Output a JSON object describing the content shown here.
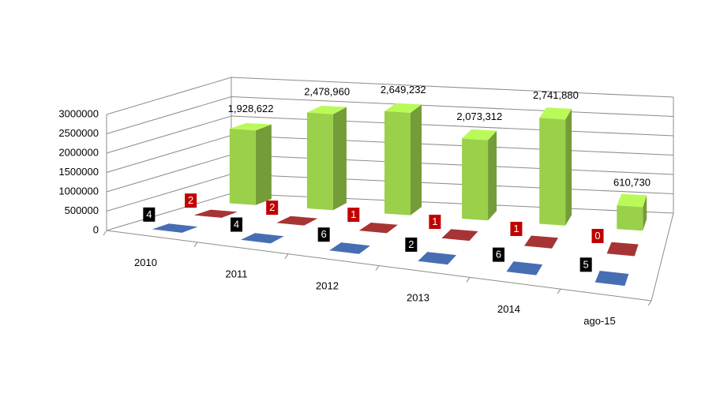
{
  "chart_data": {
    "type": "bar3d",
    "categories": [
      "2010",
      "2011",
      "2012",
      "2013",
      "2014",
      "ago-15"
    ],
    "series": [
      {
        "color": "#3b5c95",
        "values": [
          4,
          4,
          6,
          2,
          6,
          5
        ]
      },
      {
        "color": "#8b2b2b",
        "values": [
          2,
          2,
          1,
          1,
          1,
          0
        ]
      },
      {
        "color": "#9ad04a",
        "values": [
          1928622,
          2478960,
          2649232,
          2073312,
          2741880,
          610730
        ],
        "value_labels": [
          "1,928,622",
          "2,478,960",
          "2,649,232",
          "2,073,312",
          "2,741,880",
          "610,730"
        ]
      }
    ],
    "ylim": [
      0,
      3000000
    ],
    "yticks": [
      0,
      500000,
      1000000,
      1500000,
      2000000,
      2500000,
      3000000
    ],
    "grid": true
  }
}
